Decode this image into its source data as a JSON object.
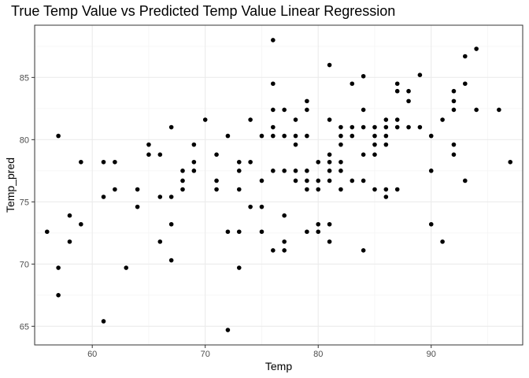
{
  "chart_data": {
    "type": "scatter",
    "title": "True Temp Value vs Predicted Temp Value Linear Regression",
    "xlabel": "Temp",
    "ylabel": "Temp_pred",
    "xlim": [
      54.9,
      98.1
    ],
    "ylim": [
      63.5,
      89.2
    ],
    "xticks": [
      60,
      70,
      80,
      90
    ],
    "yticks": [
      65,
      70,
      75,
      80,
      85
    ],
    "grid": true,
    "legend": "none",
    "colors": {
      "point": "#000000",
      "grid_major": "#ebebeb",
      "grid_minor": "#f5f5f5",
      "panel_border": "#333333"
    },
    "points": [
      [
        56,
        72.6
      ],
      [
        57,
        80.3
      ],
      [
        57,
        69.7
      ],
      [
        57,
        67.5
      ],
      [
        58,
        73.9
      ],
      [
        58,
        71.8
      ],
      [
        59,
        78.2
      ],
      [
        59,
        73.2
      ],
      [
        61,
        78.2
      ],
      [
        61,
        75.4
      ],
      [
        61,
        65.4
      ],
      [
        62,
        78.2
      ],
      [
        62,
        76.0
      ],
      [
        63,
        69.7
      ],
      [
        64,
        76.0
      ],
      [
        64,
        74.6
      ],
      [
        65,
        79.6
      ],
      [
        65,
        78.8
      ],
      [
        66,
        78.8
      ],
      [
        66,
        75.4
      ],
      [
        66,
        71.8
      ],
      [
        67,
        81.0
      ],
      [
        67,
        75.4
      ],
      [
        67,
        73.2
      ],
      [
        67,
        70.3
      ],
      [
        68,
        77.5
      ],
      [
        68,
        76.7
      ],
      [
        68,
        76.0
      ],
      [
        69,
        79.6
      ],
      [
        69,
        78.2
      ],
      [
        69,
        77.5
      ],
      [
        70,
        81.6
      ],
      [
        71,
        78.8
      ],
      [
        71,
        76.7
      ],
      [
        71,
        76.0
      ],
      [
        72,
        80.3
      ],
      [
        72,
        72.6
      ],
      [
        72,
        64.7
      ],
      [
        73,
        78.2
      ],
      [
        73,
        77.5
      ],
      [
        73,
        76.0
      ],
      [
        73,
        72.6
      ],
      [
        73,
        69.7
      ],
      [
        74,
        81.6
      ],
      [
        74,
        78.2
      ],
      [
        74,
        74.6
      ],
      [
        75,
        80.3
      ],
      [
        75,
        76.7
      ],
      [
        75,
        74.6
      ],
      [
        75,
        72.6
      ],
      [
        76,
        88.0
      ],
      [
        76,
        84.5
      ],
      [
        76,
        82.4
      ],
      [
        76,
        81.0
      ],
      [
        76,
        80.3
      ],
      [
        76,
        77.5
      ],
      [
        76,
        71.1
      ],
      [
        77,
        82.4
      ],
      [
        77,
        80.3
      ],
      [
        77,
        77.5
      ],
      [
        77,
        73.9
      ],
      [
        77,
        71.8
      ],
      [
        77,
        71.1
      ],
      [
        78,
        81.6
      ],
      [
        78,
        80.3
      ],
      [
        78,
        79.6
      ],
      [
        78,
        77.5
      ],
      [
        78,
        76.7
      ],
      [
        79,
        83.1
      ],
      [
        79,
        82.4
      ],
      [
        79,
        80.3
      ],
      [
        79,
        77.5
      ],
      [
        79,
        76.7
      ],
      [
        79,
        76.0
      ],
      [
        79,
        72.6
      ],
      [
        80,
        78.2
      ],
      [
        80,
        76.7
      ],
      [
        80,
        76.0
      ],
      [
        80,
        73.2
      ],
      [
        80,
        72.6
      ],
      [
        81,
        86.0
      ],
      [
        81,
        81.6
      ],
      [
        81,
        78.8
      ],
      [
        81,
        78.2
      ],
      [
        81,
        77.5
      ],
      [
        81,
        76.7
      ],
      [
        81,
        73.2
      ],
      [
        81,
        71.8
      ],
      [
        82,
        81.0
      ],
      [
        82,
        80.3
      ],
      [
        82,
        79.6
      ],
      [
        82,
        78.2
      ],
      [
        82,
        77.5
      ],
      [
        82,
        76.0
      ],
      [
        83,
        84.5
      ],
      [
        83,
        81.0
      ],
      [
        83,
        80.3
      ],
      [
        83,
        76.7
      ],
      [
        84,
        85.1
      ],
      [
        84,
        82.4
      ],
      [
        84,
        81.0
      ],
      [
        84,
        78.8
      ],
      [
        84,
        76.7
      ],
      [
        84,
        71.1
      ],
      [
        85,
        81.0
      ],
      [
        85,
        80.3
      ],
      [
        85,
        79.6
      ],
      [
        85,
        78.8
      ],
      [
        85,
        76.0
      ],
      [
        86,
        81.6
      ],
      [
        86,
        81.0
      ],
      [
        86,
        80.3
      ],
      [
        86,
        79.6
      ],
      [
        86,
        76.0
      ],
      [
        86,
        75.4
      ],
      [
        87,
        84.5
      ],
      [
        87,
        83.9
      ],
      [
        87,
        81.6
      ],
      [
        87,
        81.0
      ],
      [
        87,
        76.0
      ],
      [
        88,
        83.9
      ],
      [
        88,
        83.1
      ],
      [
        88,
        81.0
      ],
      [
        89,
        85.2
      ],
      [
        89,
        81.0
      ],
      [
        90,
        80.3
      ],
      [
        90,
        77.5
      ],
      [
        90,
        73.2
      ],
      [
        91,
        81.6
      ],
      [
        91,
        71.8
      ],
      [
        92,
        83.9
      ],
      [
        92,
        83.1
      ],
      [
        92,
        82.4
      ],
      [
        92,
        79.6
      ],
      [
        92,
        78.8
      ],
      [
        93,
        86.7
      ],
      [
        93,
        84.5
      ],
      [
        93,
        76.7
      ],
      [
        94,
        87.3
      ],
      [
        94,
        82.4
      ],
      [
        96,
        82.4
      ],
      [
        97,
        78.2
      ]
    ]
  }
}
